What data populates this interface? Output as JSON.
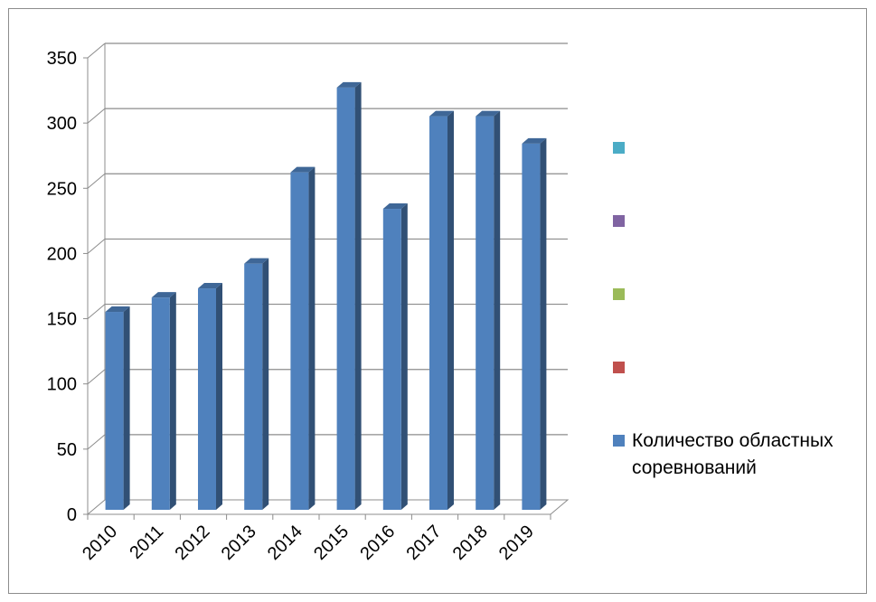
{
  "chart_data": {
    "type": "bar",
    "title": "",
    "xlabel": "",
    "ylabel": "",
    "categories": [
      "2010",
      "2011",
      "2012",
      "2013",
      "2014",
      "2015",
      "2016",
      "2017",
      "2018",
      "2019"
    ],
    "series": [
      {
        "name": "Количество областных соревнований",
        "color": "#4f81bd",
        "values": [
          158,
          169,
          176,
          195,
          265,
          330,
          237,
          308,
          308,
          287
        ]
      }
    ],
    "ylim": [
      0,
      350
    ],
    "yticks": [
      0,
      50,
      100,
      150,
      200,
      250,
      300,
      350
    ],
    "grid": true,
    "style": "3d-column",
    "legend": {
      "position": "right",
      "entries": [
        {
          "name": "",
          "color": "#4bacc6"
        },
        {
          "name": "",
          "color": "#8064a2"
        },
        {
          "name": "",
          "color": "#9bbb59"
        },
        {
          "name": "",
          "color": "#c0504d"
        },
        {
          "name": "Количество областных соревнований",
          "color": "#4f81bd"
        }
      ]
    }
  }
}
